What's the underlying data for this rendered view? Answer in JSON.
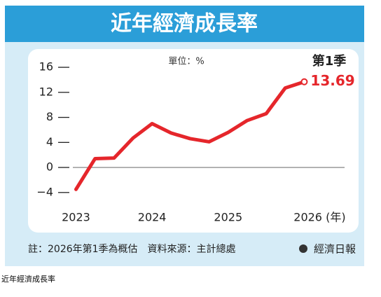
{
  "chart_data": {
    "type": "line",
    "title": "近年經濟成長率",
    "unit_label": "單位：%",
    "period_label": "第1季",
    "x": [
      2023,
      2023.25,
      2023.5,
      2023.75,
      2024,
      2024.25,
      2024.5,
      2024.75,
      2025,
      2025.25,
      2025.5,
      2025.75,
      2026
    ],
    "series": [
      {
        "name": "經濟成長率",
        "color": "#e5262b",
        "values": [
          -3.5,
          1.4,
          1.5,
          4.7,
          7.0,
          5.5,
          4.6,
          4.1,
          5.6,
          7.5,
          8.6,
          12.7,
          13.69
        ]
      }
    ],
    "xlim": [
      2022.48,
      2026.53
    ],
    "xticks": [
      2023,
      2024,
      2025,
      {
        "value": 2026,
        "label": "2026 (年)"
      }
    ],
    "ylim": [
      -5.7,
      17.8
    ],
    "yticks": [
      {
        "value": -4,
        "label": "−4"
      },
      0,
      4,
      8,
      12,
      16
    ],
    "zero_line": true,
    "note": "註：2026年第1季為概估　資料來源：主計總處",
    "brand": "經濟日報",
    "caption": "近年經濟成長率"
  }
}
